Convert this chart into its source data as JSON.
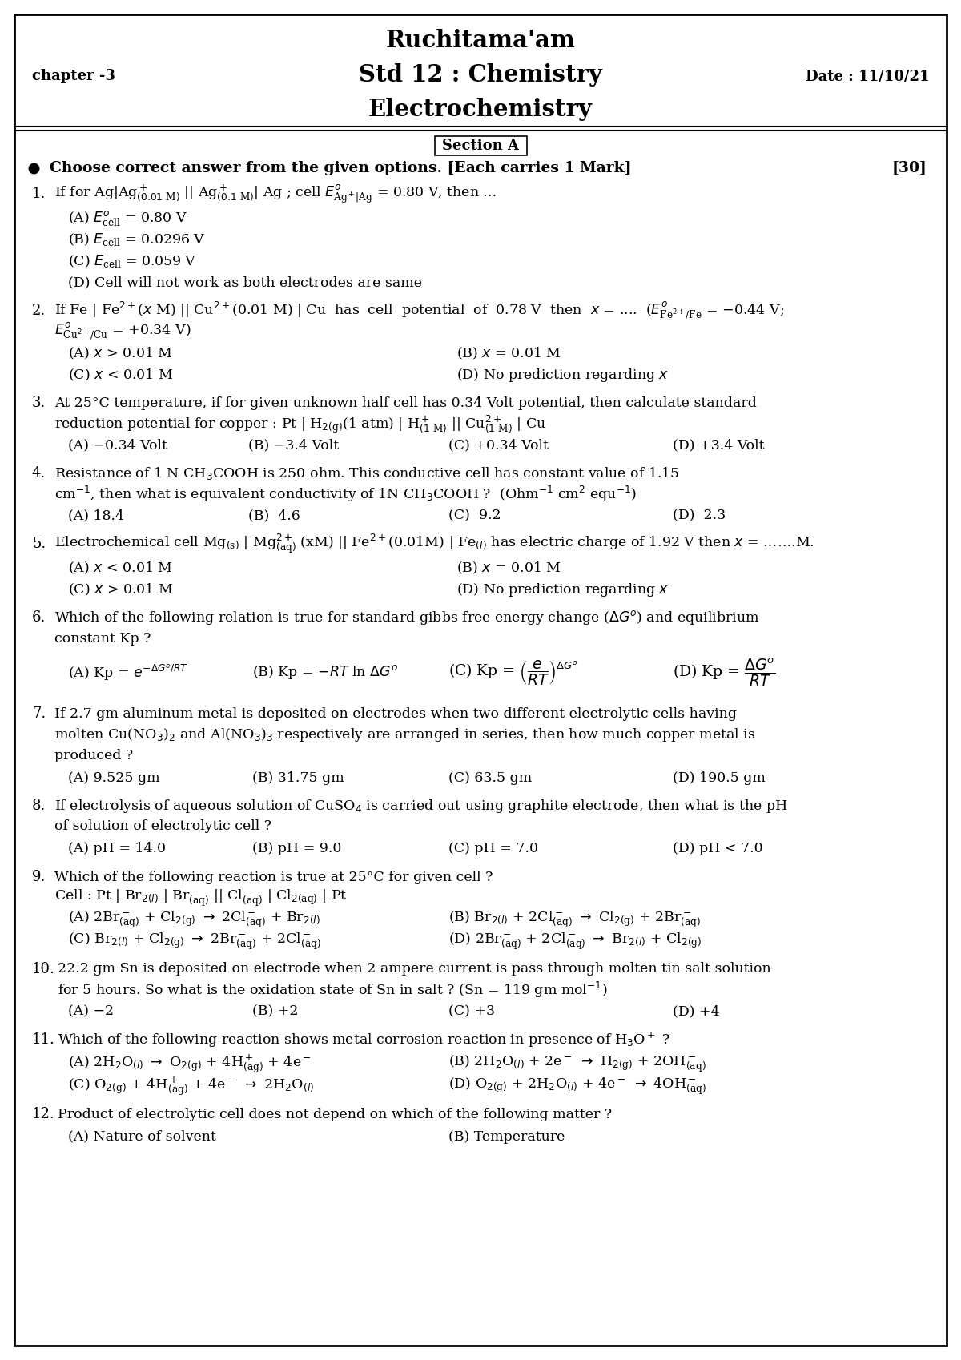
{
  "title1": "Ruchitama'am",
  "title2": "Std 12 : Chemistry",
  "title3": "Electrochemistry",
  "chapter": "chapter -3",
  "date": "Date : 11/10/21",
  "section": "Section A",
  "marks_note": "Choose correct answer from the given options. [Each carries 1 Mark]",
  "total_marks": "[30]",
  "bg_color": "#ffffff",
  "border_color": "#000000"
}
